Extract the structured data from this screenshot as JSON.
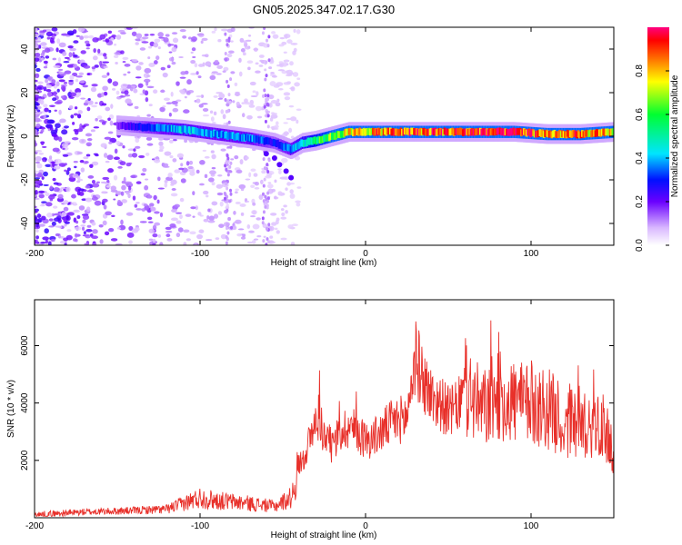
{
  "title": "GN05.2025.347.02.17.G30",
  "chart_data": [
    {
      "type": "heatmap",
      "title": "GN05.2025.347.02.17.G30",
      "xlabel": "Height of straight line (km)",
      "ylabel": "Frequency (Hz)",
      "xlim": [
        -200,
        150
      ],
      "ylim": [
        -50,
        50
      ],
      "x_ticks": [
        -200,
        -100,
        0,
        100
      ],
      "y_ticks": [
        -40,
        -20,
        0,
        20,
        40
      ],
      "colorbar": {
        "label": "Normalized spectral amplitude",
        "range": [
          0,
          1
        ],
        "ticks": [
          0.0,
          0.2,
          0.4,
          0.6,
          0.8
        ]
      },
      "ridge_x": [
        -150,
        -130,
        -110,
        -90,
        -70,
        -55,
        -45,
        -38,
        -30,
        -20,
        -10,
        0,
        10,
        30,
        50,
        70,
        90,
        110,
        130,
        150
      ],
      "ridge_y": [
        5,
        4,
        3,
        1,
        -1,
        -3,
        -6,
        -3,
        -2,
        0,
        2,
        2,
        2,
        2,
        2,
        2,
        2,
        1,
        1,
        2
      ],
      "ridge_amplitude": [
        0.2,
        0.35,
        0.45,
        0.4,
        0.4,
        0.3,
        0.4,
        0.5,
        0.6,
        0.7,
        0.8,
        0.85,
        0.9,
        0.95,
        0.95,
        1.0,
        1.0,
        0.9,
        0.9,
        0.8
      ]
    },
    {
      "type": "line",
      "xlabel": "Height of straight line (km)",
      "ylabel": "SNR (10 * v/v)",
      "xlim": [
        -200,
        150
      ],
      "ylim": [
        0,
        7600
      ],
      "x_ticks": [
        -200,
        -100,
        0,
        100
      ],
      "y_ticks": [
        2000,
        4000,
        6000
      ],
      "color": "#e8302a",
      "x": [
        -200,
        -170,
        -140,
        -120,
        -110,
        -100,
        -90,
        -70,
        -55,
        -45,
        -40,
        -35,
        -30,
        -28,
        -25,
        -20,
        -15,
        -10,
        -5,
        0,
        5,
        10,
        15,
        20,
        25,
        28,
        30,
        35,
        40,
        45,
        50,
        55,
        60,
        65,
        70,
        75,
        80,
        85,
        90,
        95,
        100,
        105,
        110,
        115,
        120,
        125,
        130,
        135,
        140,
        145,
        148,
        150
      ],
      "y": [
        100,
        200,
        250,
        300,
        500,
        700,
        600,
        500,
        400,
        700,
        1800,
        2500,
        3300,
        3600,
        2800,
        2500,
        3000,
        3200,
        3000,
        2700,
        2800,
        3000,
        3300,
        3400,
        3500,
        4800,
        5600,
        4800,
        4200,
        4000,
        3700,
        3800,
        4400,
        4200,
        3700,
        4000,
        4300,
        4000,
        4100,
        3900,
        4000,
        3900,
        3800,
        3600,
        3200,
        3500,
        3300,
        3300,
        3400,
        3000,
        2600,
        2400
      ]
    }
  ]
}
